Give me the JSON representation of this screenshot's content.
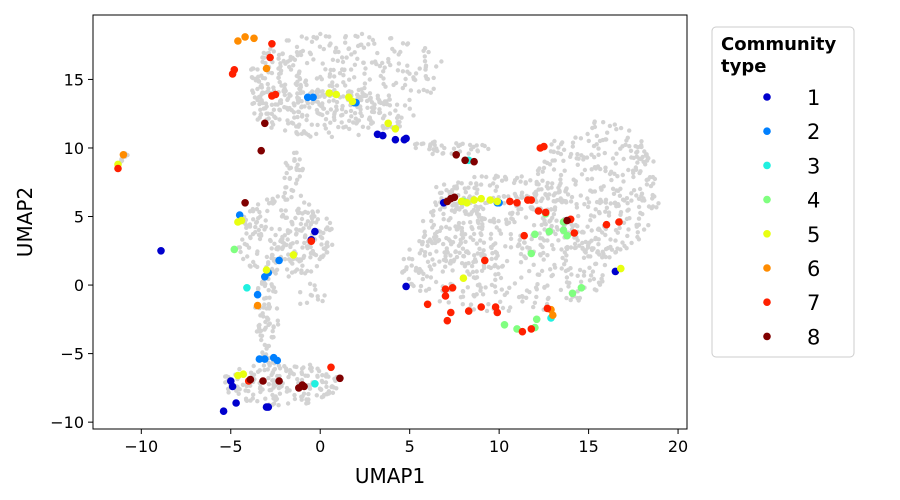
{
  "chart_data": {
    "type": "scatter",
    "title": "",
    "xlabel": "UMAP1",
    "ylabel": "UMAP2",
    "xlim": [
      -12.7,
      20.5
    ],
    "ylim": [
      -10.5,
      19.7
    ],
    "xticks": [
      -10,
      -5,
      0,
      5,
      10,
      15,
      20
    ],
    "yticks": [
      -10,
      -5,
      0,
      5,
      10,
      15
    ],
    "grid": false,
    "legend": {
      "title_line1": "Community",
      "title_line2": "type",
      "placement": "outside-right"
    },
    "background_points": {
      "color": "#d3d3d3",
      "regions": [
        {
          "cx": 1.5,
          "cy": 15.5,
          "rx": 5.5,
          "ry": 3.0,
          "n": 260
        },
        {
          "cx": 0.8,
          "cy": 12.5,
          "rx": 4.5,
          "ry": 1.8,
          "n": 160
        },
        {
          "cx": -2.5,
          "cy": 14.5,
          "rx": 1.6,
          "ry": 2.5,
          "n": 80
        },
        {
          "cx": -2.0,
          "cy": 3.5,
          "rx": 2.8,
          "ry": 3.0,
          "n": 220
        },
        {
          "cx": -3.0,
          "cy": -2.5,
          "rx": 0.7,
          "ry": 3.3,
          "n": 70
        },
        {
          "cx": -2.2,
          "cy": -7.2,
          "rx": 3.3,
          "ry": 1.6,
          "n": 170
        },
        {
          "cx": 15.5,
          "cy": 7.0,
          "rx": 3.5,
          "ry": 5.0,
          "n": 320
        },
        {
          "cx": 10.0,
          "cy": 6.5,
          "rx": 4.0,
          "ry": 1.5,
          "n": 150
        },
        {
          "cx": 10.5,
          "cy": 1.5,
          "rx": 6.0,
          "ry": 3.5,
          "n": 340
        },
        {
          "cx": 7.5,
          "cy": 3.5,
          "rx": 2.0,
          "ry": 2.5,
          "n": 90
        },
        {
          "cx": 7.0,
          "cy": 10.0,
          "rx": 2.5,
          "ry": 0.5,
          "n": 40
        },
        {
          "cx": -1.5,
          "cy": 7.8,
          "rx": 0.6,
          "ry": 2.0,
          "n": 30
        },
        {
          "cx": -11.0,
          "cy": 9.3,
          "rx": 0.3,
          "ry": 0.5,
          "n": 8
        },
        {
          "cx": -0.5,
          "cy": -0.8,
          "rx": 0.8,
          "ry": 0.9,
          "n": 12
        }
      ]
    },
    "series": [
      {
        "name": "1",
        "color": "#0000cd",
        "points": [
          [
            -8.9,
            2.5
          ],
          [
            -5.4,
            -9.2
          ],
          [
            -5.0,
            -7.0
          ],
          [
            -4.9,
            -7.4
          ],
          [
            -4.7,
            -8.6
          ],
          [
            -3.0,
            -8.9
          ],
          [
            -2.9,
            -8.9
          ],
          [
            -0.3,
            3.9
          ],
          [
            -0.5,
            3.3
          ],
          [
            3.2,
            11.0
          ],
          [
            3.5,
            10.9
          ],
          [
            4.2,
            10.6
          ],
          [
            4.7,
            10.6
          ],
          [
            4.8,
            10.7
          ],
          [
            4.8,
            -0.1
          ],
          [
            6.9,
            6.0
          ],
          [
            16.5,
            1.0
          ]
        ]
      },
      {
        "name": "2",
        "color": "#0080ff",
        "points": [
          [
            -4.5,
            5.1
          ],
          [
            -3.5,
            -0.7
          ],
          [
            -3.1,
            0.6
          ],
          [
            -2.9,
            0.9
          ],
          [
            -2.3,
            1.8
          ],
          [
            -3.4,
            -5.4
          ],
          [
            -3.1,
            -5.4
          ],
          [
            -2.6,
            -5.3
          ],
          [
            -2.4,
            -5.5
          ],
          [
            -0.7,
            13.7
          ],
          [
            -0.4,
            13.7
          ],
          [
            1.9,
            13.3
          ],
          [
            2.0,
            13.3
          ],
          [
            9.9,
            6.0
          ],
          [
            10.0,
            6.0
          ]
        ]
      },
      {
        "name": "3",
        "color": "#20f0e0",
        "points": [
          [
            -4.1,
            -0.2
          ],
          [
            -0.3,
            -7.2
          ],
          [
            8.3,
            9.1
          ],
          [
            12.9,
            -2.4
          ]
        ]
      },
      {
        "name": "4",
        "color": "#80ff80",
        "points": [
          [
            -4.8,
            2.6
          ],
          [
            7.6,
            9.5
          ],
          [
            8.0,
            6.1
          ],
          [
            10.3,
            -2.9
          ],
          [
            11.0,
            -3.2
          ],
          [
            11.8,
            2.3
          ],
          [
            12.0,
            3.7
          ],
          [
            12.0,
            -3.1
          ],
          [
            12.1,
            -2.5
          ],
          [
            12.6,
            5.2
          ],
          [
            12.8,
            3.9
          ],
          [
            13.6,
            4.0
          ],
          [
            13.6,
            4.6
          ],
          [
            13.8,
            3.6
          ],
          [
            14.1,
            -0.6
          ],
          [
            14.6,
            -0.2
          ]
        ]
      },
      {
        "name": "5",
        "color": "#e8ff10",
        "points": [
          [
            -11.3,
            8.8
          ],
          [
            -4.6,
            4.6
          ],
          [
            -4.4,
            4.7
          ],
          [
            -4.6,
            -6.6
          ],
          [
            -4.3,
            -6.5
          ],
          [
            -3.0,
            1.1
          ],
          [
            -1.5,
            2.2
          ],
          [
            0.5,
            14.0
          ],
          [
            0.9,
            13.9
          ],
          [
            1.6,
            13.7
          ],
          [
            1.8,
            13.4
          ],
          [
            3.8,
            11.8
          ],
          [
            4.2,
            11.4
          ],
          [
            7.9,
            6.1
          ],
          [
            8.2,
            6.0
          ],
          [
            8.6,
            6.2
          ],
          [
            9.0,
            6.3
          ],
          [
            9.5,
            6.2
          ],
          [
            9.9,
            6.1
          ],
          [
            8.0,
            0.5
          ],
          [
            16.8,
            1.2
          ]
        ]
      },
      {
        "name": "6",
        "color": "#ff8c00",
        "points": [
          [
            -11.0,
            9.5
          ],
          [
            -4.6,
            17.8
          ],
          [
            -4.2,
            18.1
          ],
          [
            -3.7,
            18.0
          ],
          [
            -3.0,
            15.8
          ],
          [
            -3.5,
            -1.5
          ],
          [
            12.9,
            -1.8
          ],
          [
            13.0,
            -2.2
          ]
        ]
      },
      {
        "name": "7",
        "color": "#ff2000",
        "points": [
          [
            -11.3,
            8.5
          ],
          [
            -4.9,
            15.4
          ],
          [
            -4.8,
            15.7
          ],
          [
            -2.8,
            16.6
          ],
          [
            -2.7,
            17.6
          ],
          [
            -2.7,
            13.8
          ],
          [
            -2.5,
            13.9
          ],
          [
            -4.0,
            -7.0
          ],
          [
            -0.5,
            3.2
          ],
          [
            0.6,
            -6.0
          ],
          [
            6.0,
            -1.4
          ],
          [
            7.0,
            -0.3
          ],
          [
            7.0,
            -0.8
          ],
          [
            7.4,
            -0.2
          ],
          [
            7.3,
            -2.0
          ],
          [
            7.1,
            -2.6
          ],
          [
            8.3,
            -1.9
          ],
          [
            9.0,
            -1.6
          ],
          [
            9.2,
            1.8
          ],
          [
            9.8,
            -1.6
          ],
          [
            9.9,
            -2.0
          ],
          [
            10.6,
            6.1
          ],
          [
            11.0,
            6.0
          ],
          [
            11.4,
            3.6
          ],
          [
            11.6,
            6.2
          ],
          [
            11.8,
            6.2
          ],
          [
            11.3,
            -3.4
          ],
          [
            11.8,
            -3.2
          ],
          [
            12.3,
            10.0
          ],
          [
            12.5,
            10.1
          ],
          [
            12.2,
            5.4
          ],
          [
            12.6,
            5.3
          ],
          [
            12.7,
            -1.7
          ],
          [
            14.0,
            4.8
          ],
          [
            14.2,
            3.8
          ],
          [
            16.0,
            4.4
          ],
          [
            16.7,
            4.6
          ]
        ]
      },
      {
        "name": "8",
        "color": "#800000",
        "points": [
          [
            -4.2,
            6.0
          ],
          [
            -3.3,
            9.8
          ],
          [
            -3.1,
            11.8
          ],
          [
            -3.9,
            -6.9
          ],
          [
            -3.2,
            -7.0
          ],
          [
            -2.3,
            -7.0
          ],
          [
            -1.2,
            -7.5
          ],
          [
            -1.0,
            -7.3
          ],
          [
            -0.9,
            -7.4
          ],
          [
            1.1,
            -6.8
          ],
          [
            7.1,
            6.1
          ],
          [
            7.3,
            6.3
          ],
          [
            7.5,
            6.4
          ],
          [
            7.6,
            9.5
          ],
          [
            8.1,
            9.1
          ],
          [
            8.6,
            9.0
          ],
          [
            13.8,
            4.7
          ]
        ]
      }
    ]
  }
}
